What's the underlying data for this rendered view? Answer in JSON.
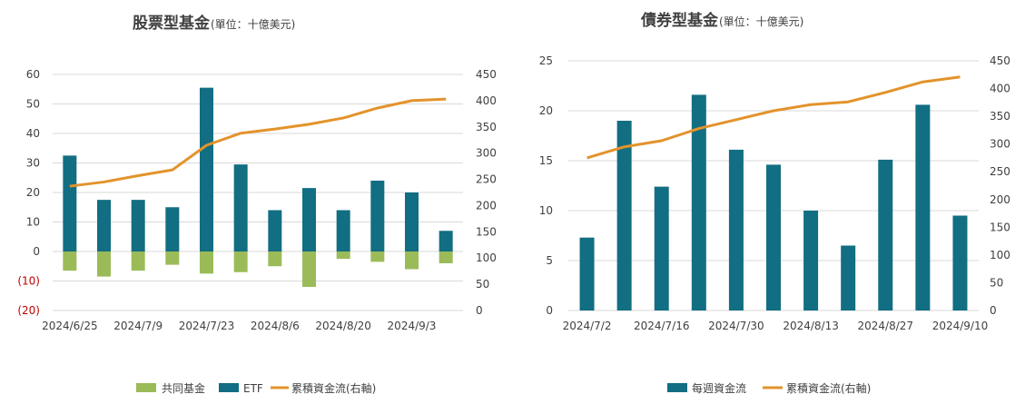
{
  "colors": {
    "etf": "#126e82",
    "mutual": "#9bbb59",
    "cumulative": "#e3932b",
    "grid": "#d9d9d9",
    "text": "#404040",
    "negative_text": "#c00000"
  },
  "chart_data": [
    {
      "type": "bar",
      "title": "股票型基金",
      "unit": "(單位：十億美元)",
      "x_ticks": [
        "2024/6/25",
        "2024/7/9",
        "2024/7/23",
        "2024/8/6",
        "2024/8/20",
        "2024/9/3"
      ],
      "left_axis": {
        "min": -20,
        "max": 60,
        "step": 10,
        "labels": [
          "(20)",
          "(10)",
          "0",
          "10",
          "20",
          "30",
          "40",
          "50",
          "60"
        ]
      },
      "right_axis": {
        "min": 0,
        "max": 450,
        "step": 50,
        "labels": [
          "0",
          "50",
          "100",
          "150",
          "200",
          "250",
          "300",
          "350",
          "400",
          "450"
        ]
      },
      "n_periods": 12,
      "series": [
        {
          "name": "共同基金",
          "type": "bar",
          "axis": "left",
          "values": [
            -6.5,
            -8.5,
            -6.5,
            -4.5,
            -7.5,
            -7,
            -5,
            -12,
            -2.5,
            -3.5,
            -6,
            -4
          ]
        },
        {
          "name": "ETF",
          "type": "bar",
          "axis": "left",
          "values": [
            32.5,
            17.5,
            17.5,
            15,
            55.5,
            29.5,
            14,
            21.5,
            14,
            24,
            20,
            7
          ]
        },
        {
          "name": "累積資金流(右軸)",
          "type": "line",
          "axis": "right",
          "values": [
            237,
            245,
            257,
            268,
            315,
            338,
            346,
            355,
            367,
            386,
            400,
            403
          ]
        }
      ],
      "legend": [
        "共同基金",
        "ETF",
        "累積資金流(右軸)"
      ],
      "legend_position": "bottom"
    },
    {
      "type": "bar",
      "title": "債券型基金",
      "unit": "(單位：十億美元)",
      "x_ticks": [
        "2024/7/2",
        "2024/7/16",
        "2024/7/30",
        "2024/8/13",
        "2024/8/27",
        "2024/9/10"
      ],
      "left_axis": {
        "min": 0,
        "max": 25,
        "step": 5,
        "labels": [
          "0",
          "5",
          "10",
          "15",
          "20",
          "25"
        ]
      },
      "right_axis": {
        "min": 0,
        "max": 450,
        "step": 50,
        "labels": [
          "0",
          "50",
          "100",
          "150",
          "200",
          "250",
          "300",
          "350",
          "400",
          "450"
        ]
      },
      "n_periods": 11,
      "series": [
        {
          "name": "每週資金流",
          "type": "bar",
          "axis": "left",
          "values": [
            7.3,
            19,
            12.4,
            21.6,
            16.1,
            14.6,
            10,
            6.5,
            15.1,
            20.6,
            9.5
          ]
        },
        {
          "name": "累積資金流(右軸)",
          "type": "line",
          "axis": "right",
          "values": [
            275,
            295,
            306,
            328,
            344,
            360,
            371,
            376,
            393,
            412,
            421
          ]
        }
      ],
      "legend": [
        "每週資金流",
        "累積資金流(右軸)"
      ],
      "legend_position": "bottom"
    }
  ]
}
